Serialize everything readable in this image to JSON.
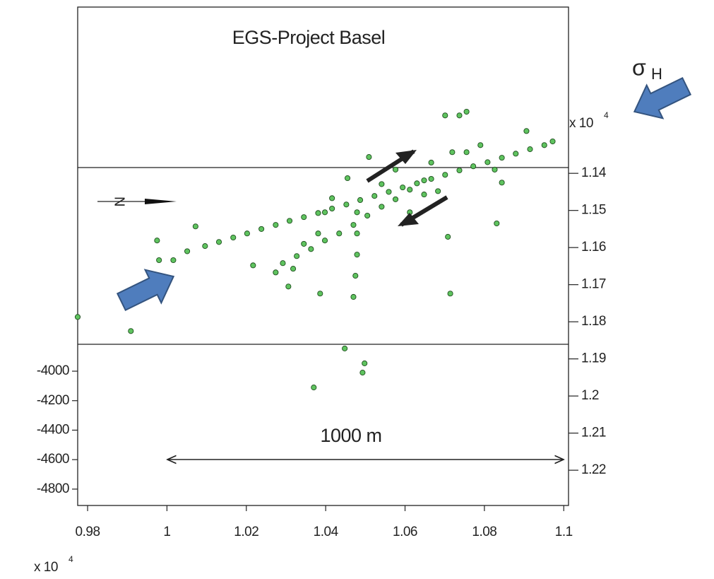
{
  "chart_data": {
    "type": "scatter",
    "title": "EGS-Project Basel",
    "annotations": {
      "scale_bar": "1000 m",
      "stress": {
        "symbol": "σ",
        "subscript": "H"
      },
      "north": "N"
    },
    "x_multiplier": {
      "base": "x 10",
      "exponent": "4"
    },
    "y2_multiplier": {
      "base": "x 10",
      "exponent": "4"
    },
    "xlim": [
      0.9775,
      1.1012
    ],
    "xticks": [
      0.98,
      1,
      1.02,
      1.04,
      1.06,
      1.08,
      1.1
    ],
    "ylim": [
      -4911,
      -1530
    ],
    "yticks": [
      -4000,
      -4200,
      -4400,
      -4600,
      -4800
    ],
    "y2lim": [
      1.2295,
      1.0952
    ],
    "y2ticks": [
      1.14,
      1.15,
      1.16,
      1.17,
      1.18,
      1.19,
      1.2,
      1.21,
      1.22
    ],
    "axis": "y2",
    "color": "#5fc35f",
    "x": [
      1.0096,
      1.0131,
      1.0167,
      1.0202,
      1.0238,
      1.0274,
      1.0309,
      1.0345,
      1.0381,
      1.0416,
      1.0452,
      1.0487,
      1.0523,
      1.0559,
      1.0594,
      1.063,
      1.0666,
      1.0701,
      1.0737,
      1.0772,
      1.0808,
      1.0844,
      1.0879,
      1.0915,
      1.0951,
      1.0292,
      1.0327,
      1.0363,
      1.0398,
      1.0434,
      1.047,
      1.0505,
      1.0541,
      1.0576,
      1.0612,
      1.0648,
      1.0274,
      1.0318,
      1.0479,
      1.0479,
      1.0479,
      1.0475,
      1.047,
      1.0398,
      1.0416,
      1.0541,
      1.0612,
      1.0576,
      1.0666,
      1.0719,
      1.079,
      1.0755,
      1.0826,
      1.0683,
      1.0381,
      1.0345,
      1.0648,
      1.0701,
      1.0737,
      1.0755,
      1.0509,
      1.0455,
      1.0708,
      1.0714,
      1.0831,
      1.0386,
      1.0306,
      1.0217,
      1.0448,
      1.0498,
      1.0493,
      1.037,
      1.0972,
      1.0906,
      1.0844,
      0.9775,
      0.9909,
      0.9975,
      0.998,
      1.0016,
      1.0072,
      1.0051
    ],
    "values": [
      1.1596,
      1.1585,
      1.1573,
      1.1562,
      1.155,
      1.1539,
      1.1528,
      1.1518,
      1.1507,
      1.1495,
      1.1484,
      1.1472,
      1.1461,
      1.145,
      1.1438,
      1.1427,
      1.1415,
      1.1404,
      1.1392,
      1.1381,
      1.137,
      1.1358,
      1.1347,
      1.1335,
      1.1324,
      1.1642,
      1.1623,
      1.1604,
      1.1581,
      1.1562,
      1.1539,
      1.1514,
      1.149,
      1.147,
      1.1444,
      1.1419,
      1.1667,
      1.1657,
      1.1505,
      1.1562,
      1.1619,
      1.1676,
      1.1733,
      1.1505,
      1.1467,
      1.1429,
      1.1505,
      1.139,
      1.1371,
      1.1343,
      1.1324,
      1.1343,
      1.139,
      1.1448,
      1.1562,
      1.159,
      1.1457,
      1.1244,
      1.1244,
      1.1234,
      1.1356,
      1.1413,
      1.1571,
      1.1724,
      1.1535,
      1.1724,
      1.1705,
      1.1648,
      1.1872,
      1.1912,
      1.1937,
      1.1977,
      1.1314,
      1.1286,
      1.1425,
      1.1787,
      1.1825,
      1.1581,
      1.1634,
      1.1634,
      1.1543,
      1.161
    ]
  }
}
